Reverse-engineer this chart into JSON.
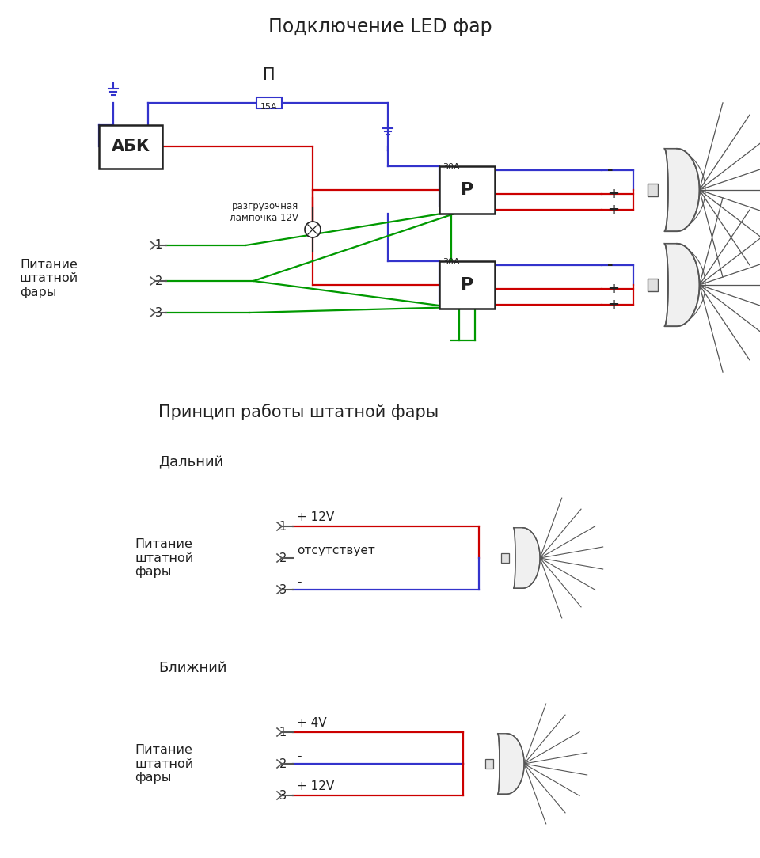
{
  "title": "Подключение LED фар",
  "bg_color": "#ffffff",
  "title_fontsize": 17,
  "section2_title": "Принцип работы штатной фары",
  "section2_sub1": "Дальний",
  "section2_sub2": "Ближний",
  "label_pitanie": "Питание\nштатной\nфары",
  "wire1_label": "+ 12V",
  "wire2_label": "отсутствует",
  "wire3_label": "-",
  "wire4_label": "+ 4V",
  "wire5_label": "-",
  "wire6_label": "+ 12V",
  "color_red": "#cc0000",
  "color_blue": "#3333cc",
  "color_green": "#009900",
  "color_gray": "#999999",
  "color_black": "#222222",
  "color_darkgray": "#555555"
}
